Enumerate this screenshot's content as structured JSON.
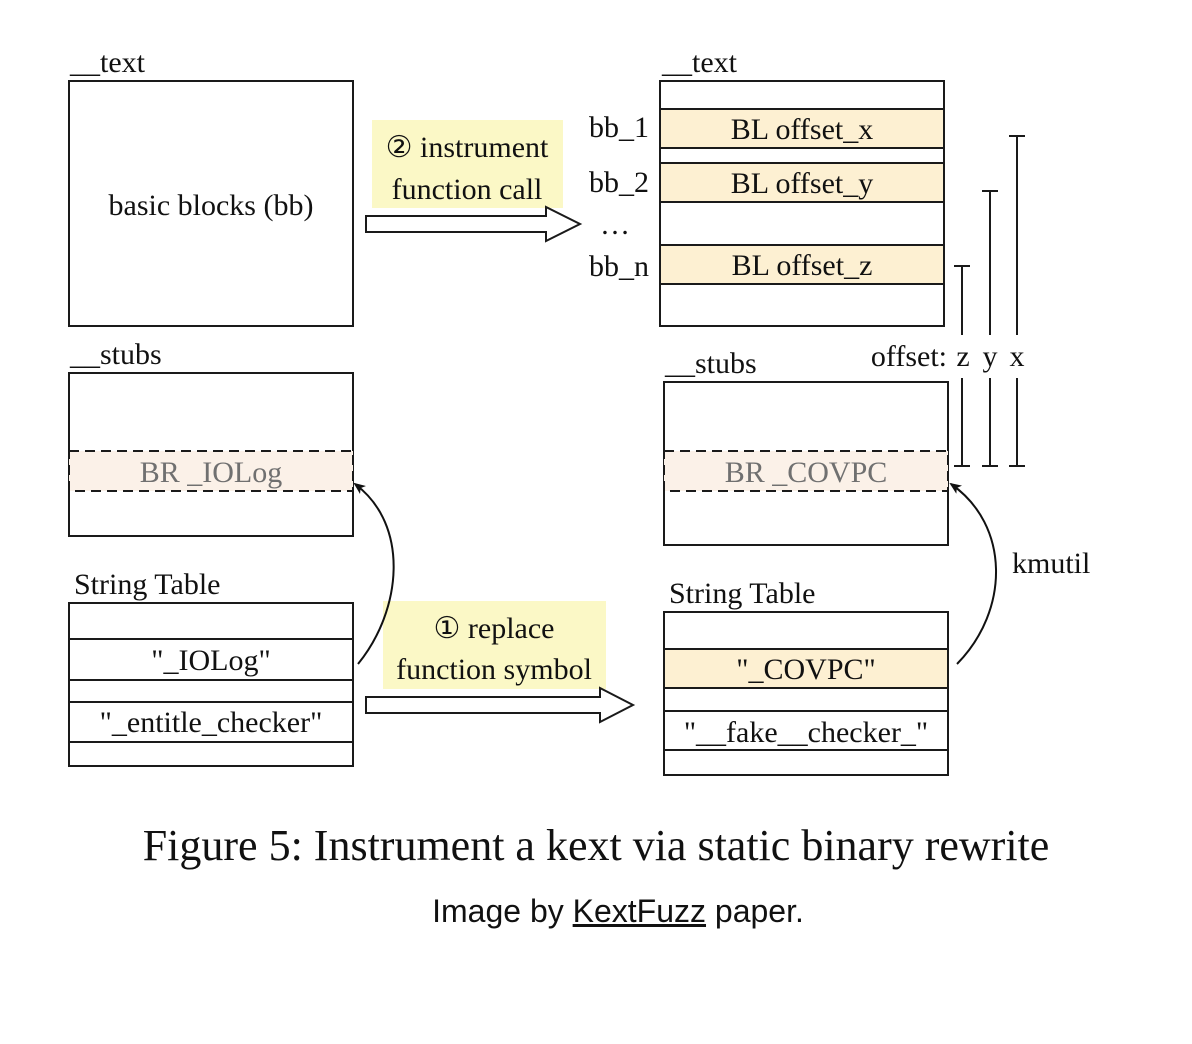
{
  "left": {
    "text_section": {
      "title": "__text",
      "content": "basic blocks (bb)"
    },
    "stubs_section": {
      "title": "__stubs",
      "entry": "BR _IOLog"
    },
    "string_table": {
      "title": "String Table",
      "rows": [
        "\"_IOLog\"",
        "\"_entitle_checker\""
      ]
    }
  },
  "right": {
    "text_section": {
      "title": "__text",
      "blocks": [
        {
          "label": "bb_1",
          "instruction": "BL offset_x"
        },
        {
          "label": "bb_2",
          "instruction": "BL offset_y"
        },
        {
          "label": "bb_n",
          "instruction": "BL offset_z"
        }
      ],
      "ellipsis": "…"
    },
    "stubs_section": {
      "title": "__stubs",
      "entry": "BR _COVPC"
    },
    "string_table": {
      "title": "String Table",
      "rows": [
        "\"_COVPC\"",
        "\"__fake__checker_\""
      ]
    },
    "offsets": {
      "label": "offset:",
      "names": [
        "z",
        "y",
        "x"
      ]
    },
    "kmutil_label": "kmutil"
  },
  "steps": {
    "instrument": {
      "line1": "② instrument",
      "line2": "function call"
    },
    "replace": {
      "line1": "① replace",
      "line2": "function symbol"
    }
  },
  "colors": {
    "highlight": "#fdf0d2",
    "stub_fill": "#fbf1e8",
    "step_bg": "#fbf8c6",
    "stroke": "#1a1a1a"
  },
  "caption": "Figure 5: Instrument a kext via static binary rewrite",
  "credit": {
    "prefix": "Image by",
    "link": "KextFuzz",
    "suffix": "paper."
  }
}
